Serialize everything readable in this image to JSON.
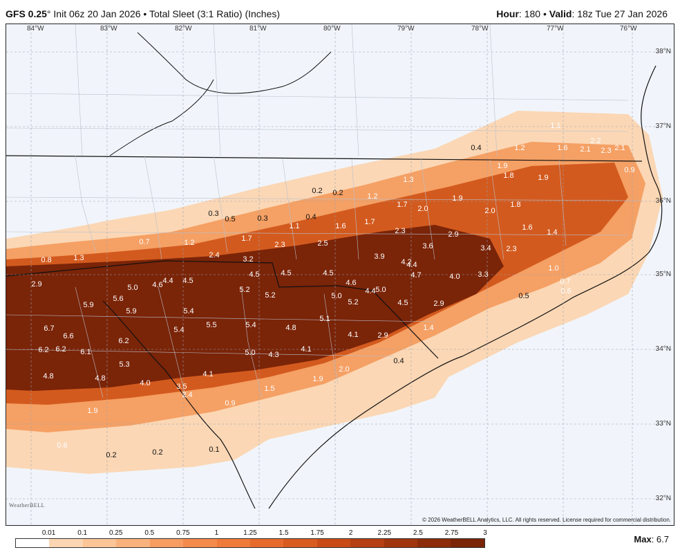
{
  "header": {
    "model": "GFS 0.25",
    "degree": "°",
    "run": " Init 06z 20 Jan 2026 • Total Sleet (3:1 Ratio) (Inches)",
    "hour_label": "Hour",
    "hour_value": ": 180 • ",
    "valid_label": "Valid",
    "valid_value": ": 18z Tue 27 Jan 2026"
  },
  "map": {
    "lon_labels": [
      "84°W",
      "83°W",
      "82°W",
      "81°W",
      "80°W",
      "79°W",
      "78°W",
      "77°W",
      "76°W"
    ],
    "lat_labels": [
      "38°N",
      "37°N",
      "36°N",
      "35°N",
      "34°N",
      "33°N",
      "32°N"
    ],
    "copyright": "© 2026 WeatherBELL Analytics, LLC. All rights reserved. License required for commercial distribution.",
    "logo": "WeatherBELL",
    "values": [
      "1.1",
      "0.4",
      "1.2",
      "1.6",
      "2.2",
      "2.1",
      "2.3",
      "2.1",
      "0.9",
      "1.9",
      "1.8",
      "1.9",
      "1.3",
      "0.2",
      "0.2",
      "1.2",
      "1.7",
      "2.0",
      "1.9",
      "2.0",
      "1.8",
      "0.3",
      "0.5",
      "0.3",
      "0.4",
      "1.1",
      "1.6",
      "1.7",
      "2.3",
      "2.9",
      "1.6",
      "1.4",
      "0.7",
      "1.2",
      "1.7",
      "2.3",
      "2.5",
      "3.6",
      "3.4",
      "2.3",
      "0.8",
      "1.3",
      "2.4",
      "3.2",
      "3.9",
      "4.2",
      "4.4",
      "4.7",
      "4.0",
      "3.3",
      "1.0",
      "2.9",
      "5.0",
      "4.6",
      "4.4",
      "4.5",
      "4.5",
      "4.5",
      "4.5",
      "4.6",
      "4.4",
      "0.7",
      "5.6",
      "5.9",
      "5.2",
      "5.2",
      "5.0",
      "5.0",
      "4.5",
      "2.9",
      "0.6",
      "0.5",
      "5.9",
      "5.4",
      "5.2",
      "5.1",
      "1.4",
      "6.7",
      "6.6",
      "6.2",
      "5.5",
      "5.4",
      "4.8",
      "4.1",
      "2.9",
      "6.2",
      "6.2",
      "6.1",
      "5.4",
      "5.0",
      "4.3",
      "4.1",
      "0.4",
      "5.3",
      "4.1",
      "2.0",
      "4.8",
      "4.8",
      "4.0",
      "3.5",
      "2.4",
      "1.5",
      "1.9",
      "0.9",
      "1.9",
      "0.6",
      "0.2",
      "0.2",
      "0.1"
    ]
  },
  "colorbar": {
    "labels": [
      "0.01",
      "0.1",
      "0.25",
      "0.5",
      "0.75",
      "1",
      "1.25",
      "1.5",
      "1.75",
      "2",
      "2.25",
      "2.5",
      "2.75",
      "3"
    ],
    "colors": [
      "#ffffff",
      "#fcd6b3",
      "#fbc598",
      "#f9b27d",
      "#f79d62",
      "#f48a4b",
      "#ef7a3a",
      "#e66a2c",
      "#d85b20",
      "#c94c17",
      "#b53f12",
      "#a0350e",
      "#8c2c0a",
      "#7a2408"
    ]
  },
  "max": {
    "label": "Max",
    "value": ": 6.7"
  }
}
